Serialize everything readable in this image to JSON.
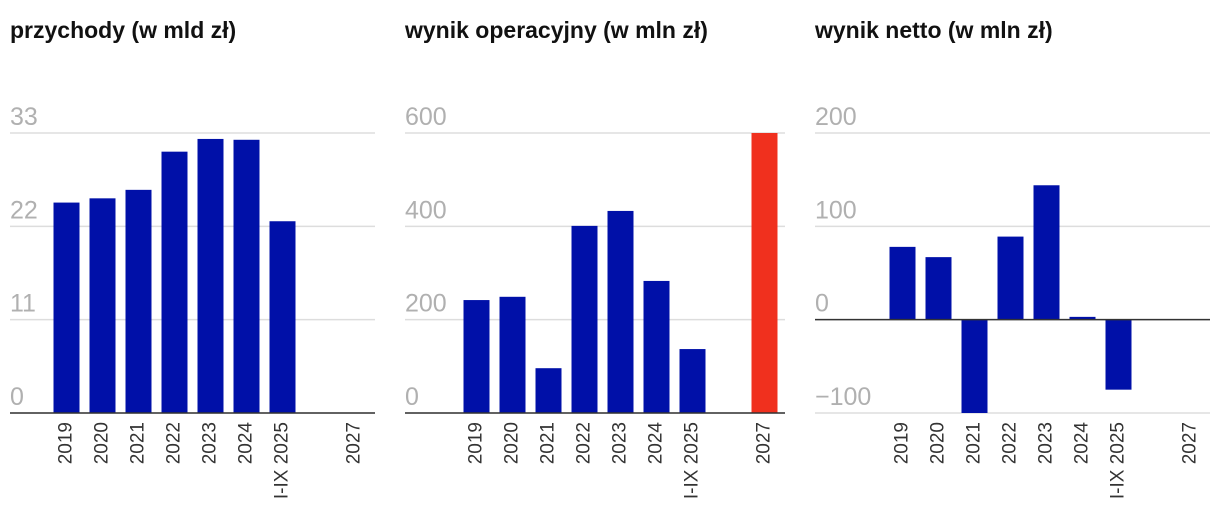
{
  "chart_data": [
    {
      "type": "bar",
      "title": "przychody (w mld zł)",
      "categories": [
        "2019",
        "2020",
        "2021",
        "2022",
        "2023",
        "2024",
        "I-IX 2025",
        null,
        "2027"
      ],
      "values": [
        24.8,
        25.3,
        26.3,
        30.8,
        32.3,
        32.2,
        22.6,
        null,
        null
      ],
      "colors": [
        "#0010a8",
        "#0010a8",
        "#0010a8",
        "#0010a8",
        "#0010a8",
        "#0010a8",
        "#0010a8",
        "#0010a8",
        "#0010a8"
      ],
      "ylim": [
        0,
        33
      ],
      "yticks": [
        0,
        11,
        22,
        33
      ],
      "grid": true
    },
    {
      "type": "bar",
      "title": "wynik operacyjny (w mln zł)",
      "categories": [
        "2019",
        "2020",
        "2021",
        "2022",
        "2023",
        "2024",
        "I-IX 2025",
        null,
        "2027"
      ],
      "values": [
        242,
        249,
        96,
        401,
        433,
        283,
        137,
        null,
        600
      ],
      "colors": [
        "#0010a8",
        "#0010a8",
        "#0010a8",
        "#0010a8",
        "#0010a8",
        "#0010a8",
        "#0010a8",
        "#0010a8",
        "#f0301e"
      ],
      "ylim": [
        0,
        600
      ],
      "yticks": [
        0,
        200,
        400,
        600
      ],
      "grid": true
    },
    {
      "type": "bar",
      "title": "wynik netto (w mln zł)",
      "categories": [
        "2019",
        "2020",
        "2021",
        "2022",
        "2023",
        "2024",
        "I-IX 2025",
        null,
        "2027"
      ],
      "values": [
        78,
        67,
        -100,
        89,
        144,
        3,
        -75,
        null,
        null
      ],
      "colors": [
        "#0010a8",
        "#0010a8",
        "#0010a8",
        "#0010a8",
        "#0010a8",
        "#0010a8",
        "#0010a8",
        "#0010a8",
        "#0010a8"
      ],
      "ylim": [
        -100,
        200
      ],
      "yticks": [
        {
          "value": -100,
          "label": "−100"
        },
        0,
        100,
        200
      ],
      "grid": true
    }
  ]
}
